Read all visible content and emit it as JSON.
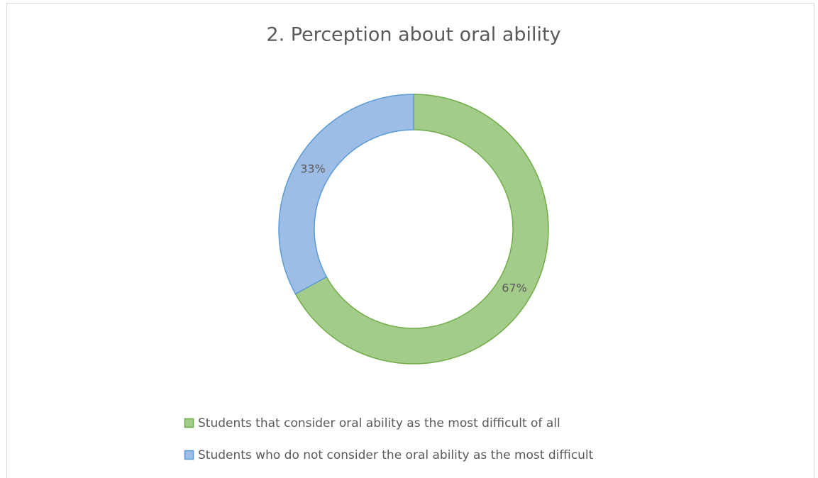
{
  "chart_data": {
    "type": "doughnut",
    "title": "2. Perception about oral ability",
    "categories": [
      "Students that consider oral ability as the most difficult of all",
      "Students who do not consider the oral ability as the most difficult"
    ],
    "values": [
      67,
      33
    ],
    "value_labels": [
      "67%",
      "33%"
    ],
    "colors": [
      "#a3cc8a",
      "#9dbde6"
    ],
    "stroke_colors": [
      "#70ad47",
      "#5b9bd5"
    ],
    "legend": "bottom"
  }
}
